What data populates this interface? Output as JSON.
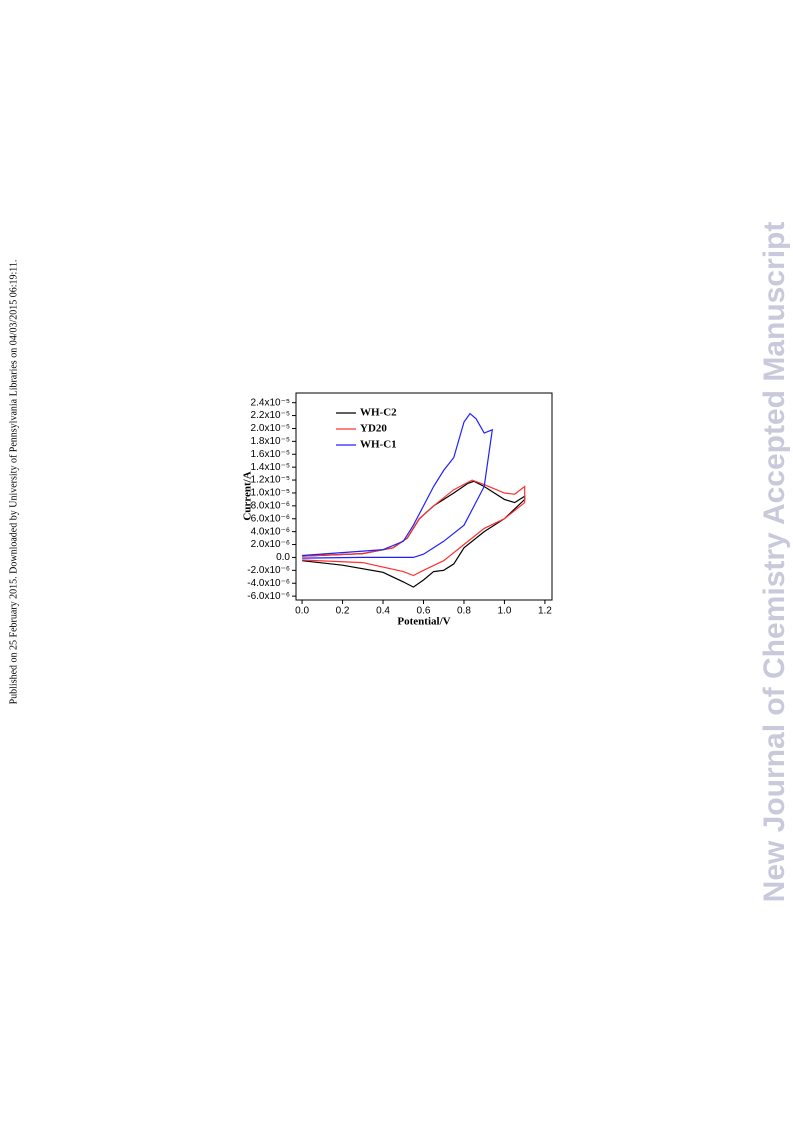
{
  "side_note": "Published on 25 February 2015. Downloaded by University of Pennsylvania Libraries on 04/03/2015 06:19:11.",
  "watermark": "New Journal of Chemistry Accepted Manuscript",
  "chart_data": {
    "type": "line",
    "xlabel": "Potential/V",
    "ylabel": "Current/A",
    "xlim": [
      -0.03,
      1.235
    ],
    "ylim": [
      -6.6e-06,
      2.55e-05
    ],
    "xticks": [
      {
        "value": 0,
        "label": "0.0"
      },
      0.2,
      0.4,
      0.6,
      0.8,
      {
        "value": 1,
        "label": "1.0"
      },
      1.2
    ],
    "yticks": [
      {
        "value": 2.4e-05,
        "label": "2.4x10⁻⁵"
      },
      {
        "value": 2.2e-05,
        "label": "2.2x10⁻⁵"
      },
      {
        "value": 2e-05,
        "label": "2.0x10⁻⁵"
      },
      {
        "value": 1.8e-05,
        "label": "1.8x10⁻⁵"
      },
      {
        "value": 1.6e-05,
        "label": "1.6x10⁻⁵"
      },
      {
        "value": 1.4e-05,
        "label": "1.4x10⁻⁵"
      },
      {
        "value": 1.2e-05,
        "label": "1.2x10⁻⁵"
      },
      {
        "value": 1e-05,
        "label": "1.0x10⁻⁵"
      },
      {
        "value": 8e-06,
        "label": "8.0x10⁻⁶"
      },
      {
        "value": 6e-06,
        "label": "6.0x10⁻⁶"
      },
      {
        "value": 4e-06,
        "label": "4.0x10⁻⁶"
      },
      {
        "value": 2e-06,
        "label": "2.0x10⁻⁶"
      },
      {
        "value": 0,
        "label": "0.0"
      },
      {
        "value": -2e-06,
        "label": "-2.0x10⁻⁶"
      },
      {
        "value": -4e-06,
        "label": "-4.0x10⁻⁶"
      },
      {
        "value": -6e-06,
        "label": "-6.0x10⁻⁶"
      }
    ],
    "legend": "upper left",
    "series": [
      {
        "name": "WH-C2",
        "color": "#000000",
        "x": [
          0.0,
          0.3,
          0.45,
          0.52,
          0.58,
          0.65,
          0.75,
          0.82,
          0.85,
          0.9,
          1.0,
          1.05,
          1.1,
          1.1,
          1.0,
          0.9,
          0.8,
          0.75,
          0.7,
          0.65,
          0.6,
          0.55,
          0.5,
          0.4,
          0.2,
          0.0
        ],
        "values": [
          2e-07,
          6e-07,
          1.5e-06,
          3e-06,
          6e-06,
          8e-06,
          1e-05,
          1.15e-05,
          1.18e-05,
          1.1e-05,
          9e-06,
          8.5e-06,
          9.5e-06,
          9e-06,
          6e-06,
          4e-06,
          1.5e-06,
          -1e-06,
          -2e-06,
          -2.2e-06,
          -3.5e-06,
          -4.6e-06,
          -3.8e-06,
          -2.3e-06,
          -1.2e-06,
          -5e-07
        ]
      },
      {
        "name": "YD20",
        "color": "#ff3030",
        "x": [
          0.0,
          0.3,
          0.45,
          0.52,
          0.58,
          0.65,
          0.75,
          0.84,
          0.9,
          1.0,
          1.05,
          1.1,
          1.1,
          1.0,
          0.9,
          0.8,
          0.7,
          0.6,
          0.55,
          0.5,
          0.3,
          0.0
        ],
        "values": [
          2e-07,
          6e-07,
          1.5e-06,
          3e-06,
          6e-06,
          8e-06,
          1.05e-05,
          1.2e-05,
          1.13e-05,
          1e-05,
          9.8e-06,
          1.1e-05,
          8.5e-06,
          6e-06,
          4.5e-06,
          2e-06,
          -5e-07,
          -2e-06,
          -2.8e-06,
          -2.2e-06,
          -8e-07,
          -4e-07
        ]
      },
      {
        "name": "WH-C1",
        "color": "#2020ff",
        "x": [
          0.0,
          0.4,
          0.5,
          0.55,
          0.6,
          0.65,
          0.7,
          0.75,
          0.8,
          0.83,
          0.86,
          0.9,
          0.94,
          0.9,
          0.85,
          0.8,
          0.7,
          0.6,
          0.55,
          0.5,
          0.3,
          0.0
        ],
        "values": [
          3e-07,
          1.2e-06,
          2.5e-06,
          5e-06,
          8e-06,
          1.1e-05,
          1.35e-05,
          1.55e-05,
          2.1e-05,
          2.23e-05,
          2.15e-05,
          1.93e-05,
          1.98e-05,
          1.1e-05,
          8e-06,
          5e-06,
          2.5e-06,
          5e-07,
          0,
          0,
          0,
          -1e-07
        ]
      }
    ]
  }
}
